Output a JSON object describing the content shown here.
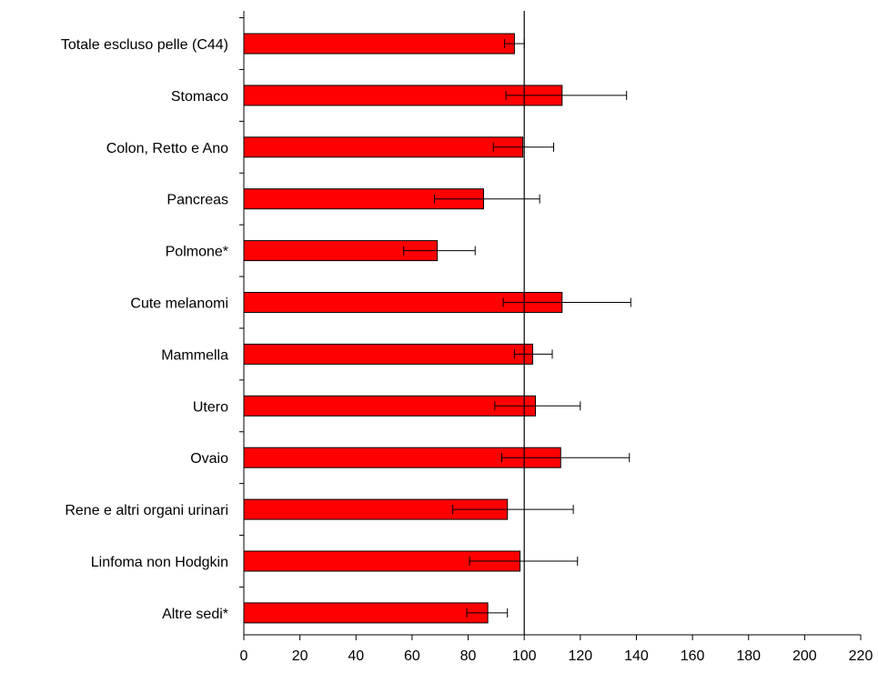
{
  "chart_data": {
    "type": "bar",
    "orientation": "horizontal",
    "categories": [
      "Totale escluso pelle (C44)",
      "Stomaco",
      "Colon, Retto e Ano",
      "Pancreas",
      "Polmone*",
      "Cute melanomi",
      "Mammella",
      "Utero",
      "Ovaio",
      "Rene e altri organi urinari",
      "Linfoma  non  Hodgkin",
      "Altre sedi*"
    ],
    "values": [
      96.5,
      113.5,
      99.5,
      85.5,
      69,
      113.5,
      103,
      104,
      113,
      94,
      98.5,
      87
    ],
    "error_low": [
      93,
      93.5,
      89,
      68,
      57,
      92.5,
      96.5,
      89.5,
      92,
      74.5,
      80.5,
      79.5
    ],
    "error_high": [
      100,
      136.5,
      110.5,
      105.5,
      82.5,
      138,
      110,
      120,
      137.5,
      117.5,
      119,
      94
    ],
    "reference_value": 100,
    "xlim": [
      0,
      220
    ],
    "xticks": [
      0,
      20,
      40,
      60,
      80,
      100,
      120,
      140,
      160,
      180,
      200,
      220
    ],
    "bar_color": "#ff0000",
    "title": "",
    "xlabel": "",
    "ylabel": "",
    "grid": false,
    "legend": "none"
  }
}
